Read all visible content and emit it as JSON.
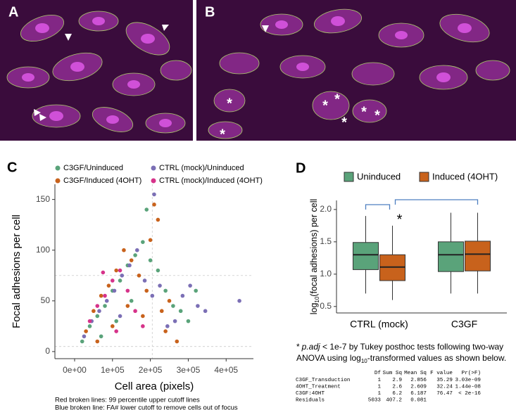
{
  "panel_labels": [
    "A",
    "B",
    "C",
    "D"
  ],
  "image_marker": "*",
  "chart_data": [
    {
      "type": "scatter",
      "x_label": "Cell area (pixels)",
      "y_label": "Focal adhesions per cell",
      "xlim": [
        -52000,
        472000
      ],
      "ylim": [
        -7,
        165
      ],
      "xticks": [
        {
          "value": 0,
          "label": "0e+00"
        },
        {
          "value": 100000,
          "label": "1e+05"
        },
        {
          "value": 200000,
          "label": "2e+05"
        },
        {
          "value": 300000,
          "label": "3e+05"
        },
        {
          "value": 400000,
          "label": "4e+05"
        }
      ],
      "yticks": [
        0,
        50,
        100,
        150
      ],
      "ref_lines_x": [
        205000
      ],
      "ref_lines_y": [
        75,
        5
      ],
      "series": [
        {
          "name": "C3GF/Uninduced",
          "color": "#5aa37a",
          "x": [
            20000,
            40000,
            60000,
            80000,
            100000,
            120000,
            140000,
            160000,
            180000,
            200000,
            220000,
            240000,
            260000,
            280000,
            300000,
            320000,
            190000,
            150000,
            110000,
            70000
          ],
          "y": [
            10,
            25,
            35,
            45,
            60,
            70,
            85,
            95,
            108,
            90,
            80,
            60,
            45,
            40,
            30,
            60,
            140,
            50,
            30,
            15
          ]
        },
        {
          "name": "C3GF/Induced (4OHT)",
          "color": "#c8621c",
          "x": [
            30000,
            50000,
            70000,
            90000,
            110000,
            130000,
            150000,
            170000,
            190000,
            210000,
            220000,
            230000,
            250000,
            270000,
            240000,
            100000,
            60000,
            140000,
            180000,
            200000
          ],
          "y": [
            20,
            40,
            55,
            65,
            80,
            100,
            90,
            75,
            60,
            145,
            130,
            40,
            50,
            10,
            20,
            25,
            10,
            45,
            35,
            110
          ]
        },
        {
          "name": "CTRL (mock)/Uninduced",
          "color": "#7b6fb5",
          "x": [
            25000,
            45000,
            65000,
            85000,
            105000,
            125000,
            145000,
            165000,
            185000,
            205000,
            225000,
            245000,
            265000,
            285000,
            305000,
            325000,
            345000,
            435000,
            210000,
            120000
          ],
          "y": [
            15,
            30,
            40,
            50,
            60,
            75,
            85,
            100,
            70,
            55,
            65,
            25,
            30,
            55,
            65,
            45,
            40,
            50,
            155,
            35
          ]
        },
        {
          "name": "CTRL (mock)/Induced (4OHT)",
          "color": "#d6338a",
          "x": [
            40000,
            60000,
            80000,
            100000,
            120000,
            140000,
            160000,
            75000,
            110000,
            180000
          ],
          "y": [
            30,
            45,
            55,
            70,
            80,
            60,
            40,
            78,
            20,
            25
          ]
        }
      ],
      "notes": [
        "Red broken lines: 99 percentile upper cutoff lines",
        "Blue broken line: FA# lower cutoff to remove cells out of focus"
      ]
    },
    {
      "type": "box",
      "y_label": {
        "pre": "log",
        "sub": "10",
        "post": "(focal adhesions) per cell"
      },
      "categories": [
        "CTRL (mock)",
        "C3GF"
      ],
      "ylim": [
        0.4,
        2.14
      ],
      "yticks": [
        {
          "value": 0.5,
          "label": "0.5"
        },
        {
          "value": 1,
          "label": "1.0"
        },
        {
          "value": 1.5,
          "label": "1.5"
        },
        {
          "value": 2,
          "label": "2.0"
        }
      ],
      "annotation": "*",
      "series": [
        {
          "name": "Uninduced",
          "color": "#5aa37a",
          "low": [
            0.7,
            0.7
          ],
          "q1": [
            1.07,
            1.04
          ],
          "median": [
            1.3,
            1.3
          ],
          "q3": [
            1.49,
            1.5
          ],
          "high": [
            1.9,
            1.95
          ]
        },
        {
          "name": "Induced (4OHT)",
          "color": "#c8621c",
          "low": [
            0.6,
            0.7
          ],
          "q1": [
            0.9,
            1.05
          ],
          "median": [
            1.11,
            1.31
          ],
          "q3": [
            1.3,
            1.51
          ],
          "high": [
            1.75,
            1.95
          ]
        }
      ]
    }
  ],
  "footnote": {
    "star": "*",
    "italic": "p.adj",
    "line1": " <  1e-7 by Tukey posthoc tests following two-way",
    "line2a": "ANOVA using log",
    "sub": "10",
    "line2b": "-transformed values as shown below."
  },
  "anova": {
    "header": [
      "Df",
      "Sum Sq",
      "Mean Sq",
      "F value",
      "Pr(>F)"
    ],
    "rows": [
      [
        "C3GF_Transduction",
        "1",
        "2.9",
        "2.856",
        "35.29",
        "3.03e-09"
      ],
      [
        "4OHT_Treatment",
        "1",
        "2.6",
        "2.609",
        "32.24",
        "1.44e-08"
      ],
      [
        "C3GF:4OHT",
        "1",
        "6.2",
        "6.187",
        "76.47",
        "< 2e-16"
      ],
      [
        "Residuals",
        "5033",
        "407.2",
        "0.081"
      ]
    ]
  }
}
